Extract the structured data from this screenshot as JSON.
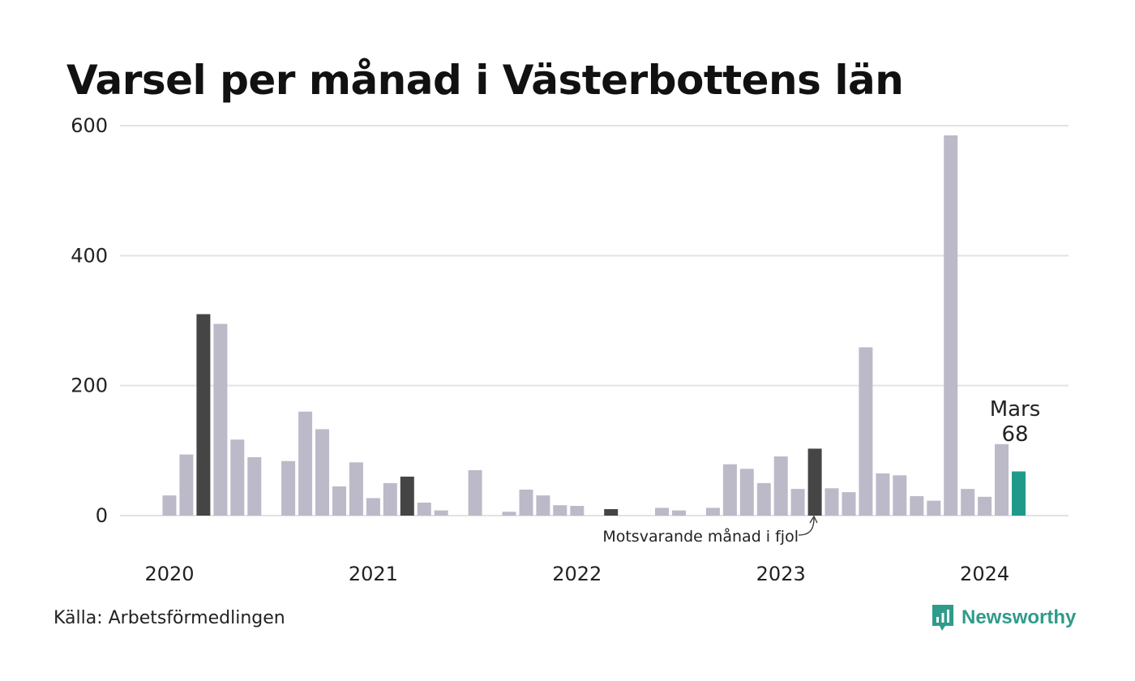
{
  "header": {
    "title": "Varsel per månad i Västerbottens län"
  },
  "footer": {
    "source": "Källa: Arbetsförmedlingen",
    "brand": "Newsworthy"
  },
  "colors": {
    "normal": "#bcbac8",
    "highlight_same_month": "#454545",
    "current": "#1f9a8a",
    "grid": "#e3e3e3"
  },
  "chart_data": {
    "type": "bar",
    "title": "Varsel per månad i Västerbottens län",
    "xlabel": "",
    "ylabel": "",
    "ylim": [
      0,
      600
    ],
    "yticks": [
      0,
      200,
      400,
      600
    ],
    "ytick_labels": [
      "0",
      "200",
      "400",
      "600"
    ],
    "xtick_labels": [
      "2020",
      "2021",
      "2022",
      "2023",
      "2024"
    ],
    "grid": true,
    "start": "2020-01",
    "months": [
      "2020-01",
      "2020-02",
      "2020-03",
      "2020-04",
      "2020-05",
      "2020-06",
      "2020-07",
      "2020-08",
      "2020-09",
      "2020-10",
      "2020-11",
      "2020-12",
      "2021-01",
      "2021-02",
      "2021-03",
      "2021-04",
      "2021-05",
      "2021-06",
      "2021-07",
      "2021-08",
      "2021-09",
      "2021-10",
      "2021-11",
      "2021-12",
      "2022-01",
      "2022-02",
      "2022-03",
      "2022-04",
      "2022-05",
      "2022-06",
      "2022-07",
      "2022-08",
      "2022-09",
      "2022-10",
      "2022-11",
      "2022-12",
      "2023-01",
      "2023-02",
      "2023-03",
      "2023-04",
      "2023-05",
      "2023-06",
      "2023-07",
      "2023-08",
      "2023-09",
      "2023-10",
      "2023-11",
      "2023-12",
      "2024-01",
      "2024-02",
      "2024-03"
    ],
    "values": [
      31,
      94,
      310,
      295,
      117,
      90,
      null,
      84,
      160,
      133,
      45,
      82,
      27,
      50,
      60,
      20,
      8,
      null,
      70,
      null,
      6,
      40,
      31,
      16,
      15,
      null,
      10,
      null,
      null,
      12,
      8,
      null,
      12,
      79,
      72,
      50,
      91,
      41,
      103,
      42,
      36,
      259,
      65,
      62,
      30,
      23,
      585,
      41,
      29,
      110,
      68
    ],
    "highlight_same_month": [
      "2020-03",
      "2021-03",
      "2022-03",
      "2023-03"
    ],
    "current": {
      "month": "2024-03",
      "label": "Mars",
      "value": "68"
    },
    "annotation": "Motsvarande månad i fjol"
  }
}
